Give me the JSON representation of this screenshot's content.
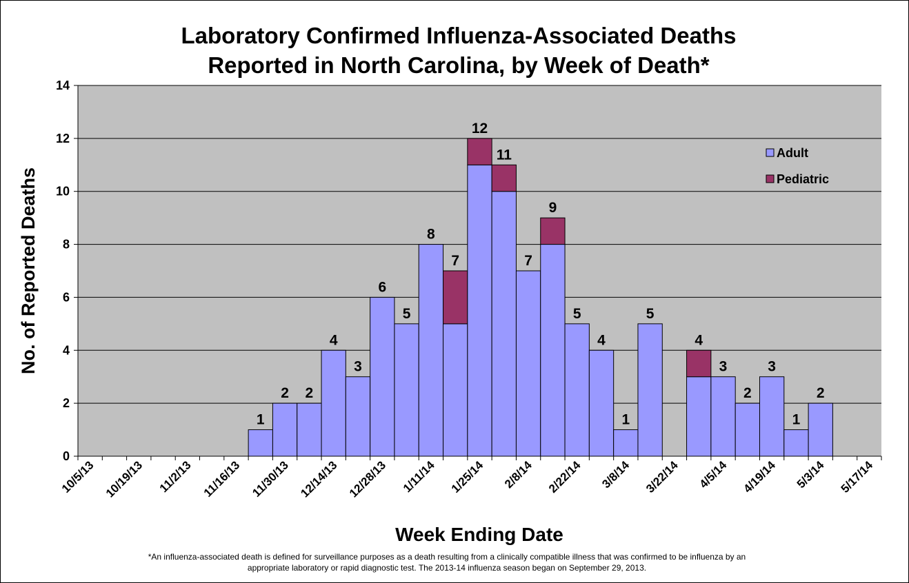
{
  "chart_data": {
    "type": "stacked_bar",
    "title": [
      "Laboratory Confirmed Influenza-Associated Deaths",
      "Reported in North Carolina, by Week of Death*"
    ],
    "x_label": "Week Ending Date",
    "y_label": "No. of Reported Deaths",
    "footnote": [
      "*An influenza-associated death is defined for surveillance purposes as a death resulting from a clinically compatible illness that was confirmed to be influenza by an",
      "appropriate laboratory or rapid diagnostic test.  The 2013-14 influenza season began on September 29, 2013."
    ],
    "categories": [
      "10/5/13",
      null,
      "10/19/13",
      null,
      "11/2/13",
      null,
      "11/16/13",
      null,
      "11/30/13",
      null,
      "12/14/13",
      null,
      "12/28/13",
      null,
      "1/11/14",
      null,
      "1/25/14",
      null,
      "2/8/14",
      null,
      "2/22/14",
      null,
      "3/8/14",
      null,
      "3/22/14",
      null,
      "4/5/14",
      null,
      "4/19/14",
      null,
      "5/3/14",
      null,
      "5/17/14"
    ],
    "series": [
      {
        "name": "Adult",
        "color": "#9999ff",
        "values": [
          0,
          0,
          0,
          0,
          0,
          0,
          0,
          1,
          2,
          2,
          4,
          3,
          6,
          5,
          8,
          5,
          11,
          10,
          7,
          8,
          5,
          4,
          1,
          5,
          0,
          3,
          3,
          2,
          3,
          1,
          2,
          0,
          0
        ]
      },
      {
        "name": "Pediatric",
        "color": "#993366",
        "values": [
          0,
          0,
          0,
          0,
          0,
          0,
          0,
          0,
          0,
          0,
          0,
          0,
          0,
          0,
          0,
          2,
          1,
          1,
          0,
          1,
          0,
          0,
          0,
          0,
          0,
          1,
          0,
          0,
          0,
          0,
          0,
          0,
          0
        ]
      }
    ],
    "totals": [
      null,
      null,
      null,
      null,
      null,
      null,
      null,
      1,
      2,
      2,
      4,
      3,
      6,
      5,
      8,
      7,
      12,
      11,
      7,
      9,
      5,
      4,
      1,
      5,
      null,
      4,
      3,
      2,
      3,
      1,
      2,
      null,
      null
    ],
    "ylim": [
      0,
      14
    ],
    "yticks": [
      0,
      2,
      4,
      6,
      8,
      10,
      12,
      14
    ],
    "grid": true,
    "legend": "upper right"
  }
}
